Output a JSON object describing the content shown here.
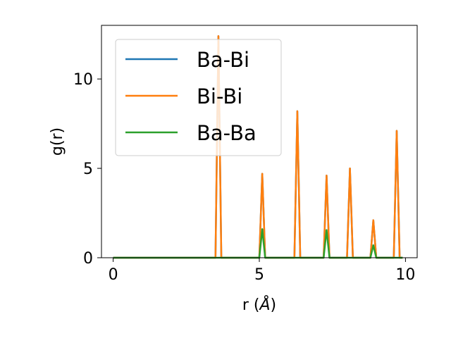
{
  "chart_data": {
    "type": "line",
    "xlabel": "r (",
    "xlabel_unit": "Å",
    "xlabel_close": ")",
    "ylabel": "g(r)",
    "xlim": [
      -0.4,
      10.4
    ],
    "ylim": [
      0,
      13
    ],
    "xticks": [
      0,
      5,
      10
    ],
    "yticks": [
      0,
      5,
      10
    ],
    "legend_position": "top-left",
    "grid": false,
    "series": [
      {
        "name": "Ba-Bi",
        "color": "#1f77b4",
        "x": [
          0,
          3.5,
          3.6,
          3.7,
          5.0,
          5.1,
          5.2,
          6.2,
          6.3,
          6.4,
          7.2,
          7.3,
          7.4,
          8.0,
          8.1,
          8.2,
          8.8,
          8.9,
          9.0,
          9.6,
          9.7,
          9.8,
          9.9
        ],
        "y": [
          0,
          0,
          12.4,
          0,
          0,
          4.7,
          0,
          0,
          8.2,
          0,
          0,
          4.6,
          0,
          0,
          5.0,
          0,
          0,
          2.1,
          0,
          0,
          7.1,
          0,
          0
        ]
      },
      {
        "name": "Bi-Bi",
        "color": "#ff7f0e",
        "x": [
          0,
          3.5,
          3.6,
          3.7,
          5.0,
          5.1,
          5.2,
          6.2,
          6.3,
          6.4,
          7.2,
          7.3,
          7.4,
          8.0,
          8.1,
          8.2,
          8.8,
          8.9,
          9.0,
          9.6,
          9.7,
          9.8,
          9.9
        ],
        "y": [
          0,
          0,
          12.4,
          0,
          0,
          4.7,
          0,
          0,
          8.2,
          0,
          0,
          4.6,
          0,
          0,
          5.0,
          0,
          0,
          2.1,
          0,
          0,
          7.1,
          0,
          0
        ]
      },
      {
        "name": "Ba-Ba",
        "color": "#2ca02c",
        "x": [
          0,
          5.0,
          5.1,
          5.2,
          7.2,
          7.3,
          7.4,
          8.8,
          8.9,
          9.0,
          9.9
        ],
        "y": [
          0,
          0,
          1.6,
          0,
          0,
          1.55,
          0,
          0,
          0.7,
          0,
          0
        ]
      }
    ]
  }
}
